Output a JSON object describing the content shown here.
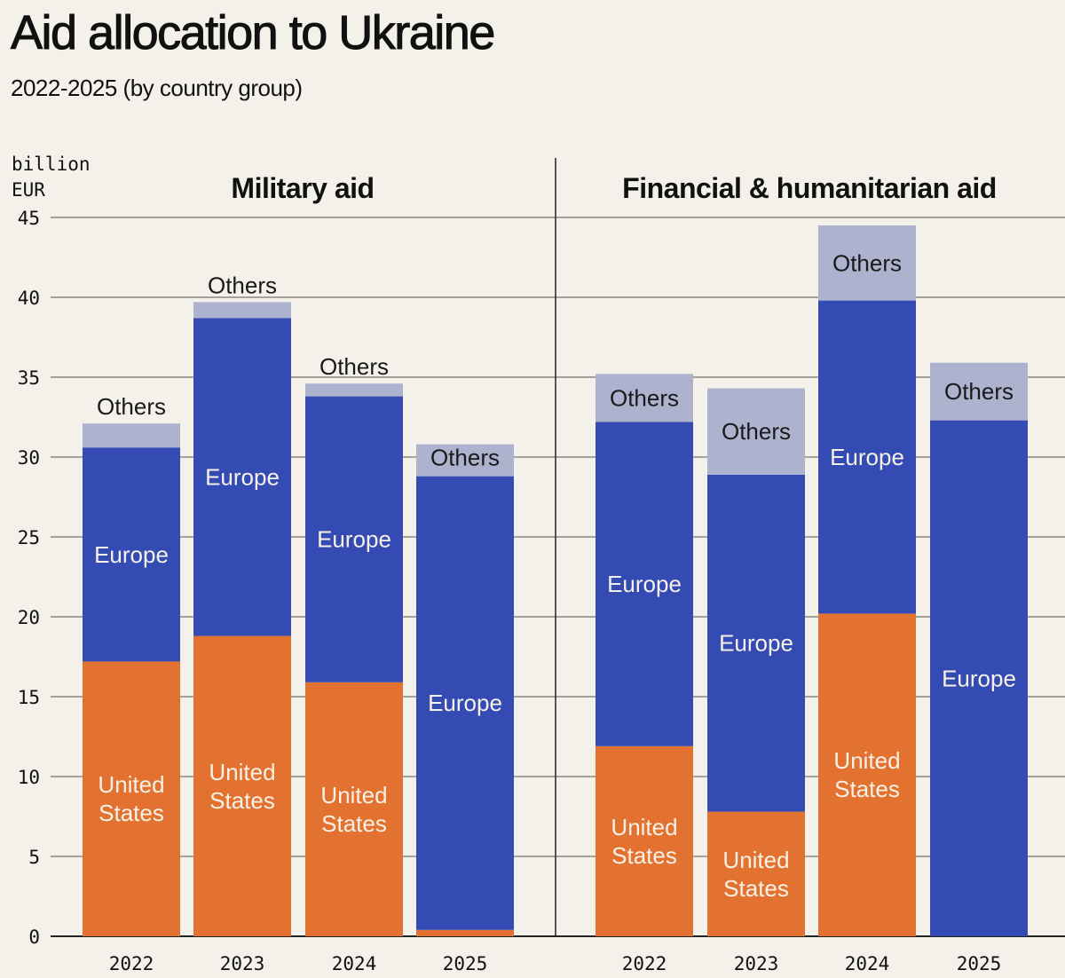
{
  "title": "Aid allocation to Ukraine",
  "subtitle": "2022-2025 (by country group)",
  "chart_data": {
    "type": "bar",
    "stacked": true,
    "unit_label": [
      "billion",
      "EUR"
    ],
    "ylim": [
      0,
      45
    ],
    "yticks": [
      0,
      5,
      10,
      15,
      20,
      25,
      30,
      35,
      40,
      45
    ],
    "grid": true,
    "colors": {
      "United States": "#e37230",
      "Europe": "#344bb4",
      "Others": "#adb2cf"
    },
    "panels": [
      {
        "title": "Military aid",
        "categories": [
          "2022",
          "2023",
          "2024",
          "2025"
        ],
        "series": [
          {
            "name": "United States",
            "label": "United\nStates",
            "values": [
              17.2,
              18.8,
              15.9,
              0.4
            ],
            "show_label": [
              true,
              true,
              true,
              false
            ]
          },
          {
            "name": "Europe",
            "label": "Europe",
            "values": [
              13.4,
              19.9,
              17.9,
              28.4
            ],
            "show_label": [
              true,
              true,
              true,
              true
            ]
          },
          {
            "name": "Others",
            "label": "Others",
            "values": [
              1.5,
              1.0,
              0.8,
              2.0
            ],
            "show_label": [
              true,
              true,
              true,
              true
            ]
          }
        ]
      },
      {
        "title": "Financial & humanitarian aid",
        "categories": [
          "2022",
          "2023",
          "2024",
          "2025"
        ],
        "series": [
          {
            "name": "United States",
            "label": "United\nStates",
            "values": [
              11.9,
              7.8,
              20.2,
              0
            ],
            "show_label": [
              true,
              true,
              true,
              false
            ]
          },
          {
            "name": "Europe",
            "label": "Europe",
            "values": [
              20.3,
              21.1,
              19.6,
              32.3
            ],
            "show_label": [
              true,
              true,
              true,
              true
            ]
          },
          {
            "name": "Others",
            "label": "Others",
            "values": [
              3.0,
              5.4,
              4.7,
              3.6
            ],
            "show_label": [
              true,
              true,
              true,
              true
            ]
          }
        ]
      }
    ]
  }
}
